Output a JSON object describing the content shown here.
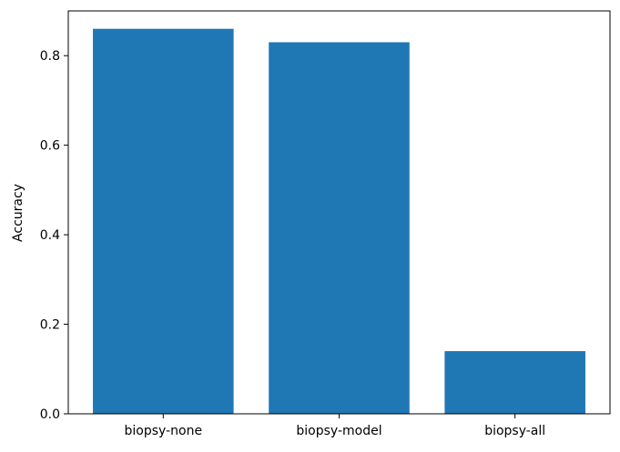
{
  "chart_data": {
    "type": "bar",
    "categories": [
      "biopsy-none",
      "biopsy-model",
      "biopsy-all"
    ],
    "values": [
      0.86,
      0.83,
      0.14
    ],
    "title": "",
    "xlabel": "",
    "ylabel": "Accuracy",
    "ylim": [
      0,
      0.9
    ],
    "yticks": [
      0.0,
      0.2,
      0.4,
      0.6,
      0.8
    ],
    "ytick_labels": [
      "0.0",
      "0.2",
      "0.4",
      "0.6",
      "0.8"
    ],
    "grid": false,
    "bar_color": "#1f77b4"
  }
}
